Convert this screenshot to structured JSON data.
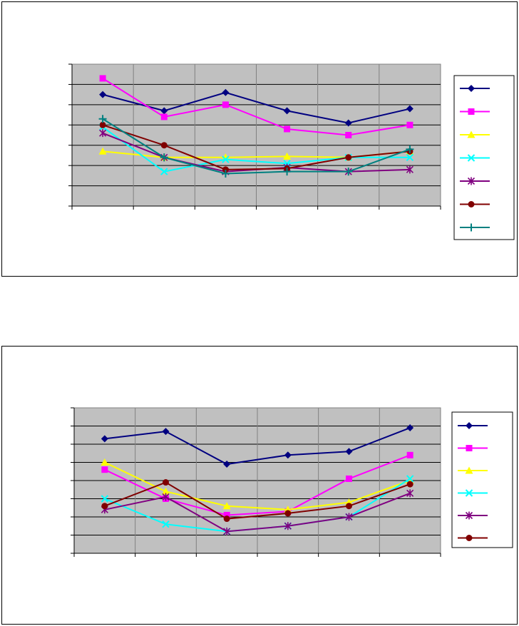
{
  "chart_data": [
    {
      "type": "line",
      "categories": [
        "",
        "",
        "",
        "",
        "",
        ""
      ],
      "ylim": [
        0,
        7
      ],
      "grid": true,
      "legend": "right",
      "series": [
        {
          "color": "#000080",
          "marker": "diamond",
          "values": [
            5.5,
            4.7,
            5.6,
            4.7,
            4.1,
            4.8
          ]
        },
        {
          "color": "#FF00FF",
          "marker": "square",
          "values": [
            6.3,
            4.4,
            5.0,
            3.8,
            3.5,
            4.0
          ]
        },
        {
          "color": "#FFFF00",
          "marker": "triangle",
          "values": [
            2.7,
            2.4,
            2.4,
            2.45,
            2.4,
            2.7
          ]
        },
        {
          "color": "#00FFFF",
          "marker": "x",
          "values": [
            3.9,
            1.7,
            2.3,
            2.1,
            2.4,
            2.4
          ]
        },
        {
          "color": "#800080",
          "marker": "star",
          "values": [
            3.6,
            2.4,
            1.7,
            1.9,
            1.7,
            1.8
          ]
        },
        {
          "color": "#800000",
          "marker": "circle",
          "values": [
            4.0,
            3.0,
            1.8,
            1.85,
            2.4,
            2.7
          ]
        },
        {
          "color": "#008080",
          "marker": "plus",
          "values": [
            4.3,
            2.4,
            1.6,
            1.7,
            1.7,
            2.8
          ]
        }
      ]
    },
    {
      "type": "line",
      "categories": [
        "",
        "",
        "",
        "",
        "",
        ""
      ],
      "ylim": [
        0,
        8
      ],
      "grid": true,
      "legend": "right",
      "series": [
        {
          "color": "#000080",
          "marker": "diamond",
          "values": [
            6.3,
            6.7,
            4.9,
            5.4,
            5.6,
            6.9
          ]
        },
        {
          "color": "#FF00FF",
          "marker": "square",
          "values": [
            4.6,
            3.0,
            2.1,
            2.3,
            4.1,
            5.4
          ]
        },
        {
          "color": "#FFFF00",
          "marker": "triangle",
          "values": [
            5.0,
            3.4,
            2.6,
            2.4,
            2.8,
            4.0
          ]
        },
        {
          "color": "#00FFFF",
          "marker": "x",
          "values": [
            3.0,
            1.6,
            1.2,
            1.5,
            2.0,
            4.1
          ]
        },
        {
          "color": "#800080",
          "marker": "star",
          "values": [
            2.4,
            3.1,
            1.2,
            1.5,
            2.0,
            3.3
          ]
        },
        {
          "color": "#800000",
          "marker": "circle",
          "values": [
            2.6,
            3.9,
            1.9,
            2.2,
            2.6,
            3.8
          ]
        }
      ]
    }
  ]
}
